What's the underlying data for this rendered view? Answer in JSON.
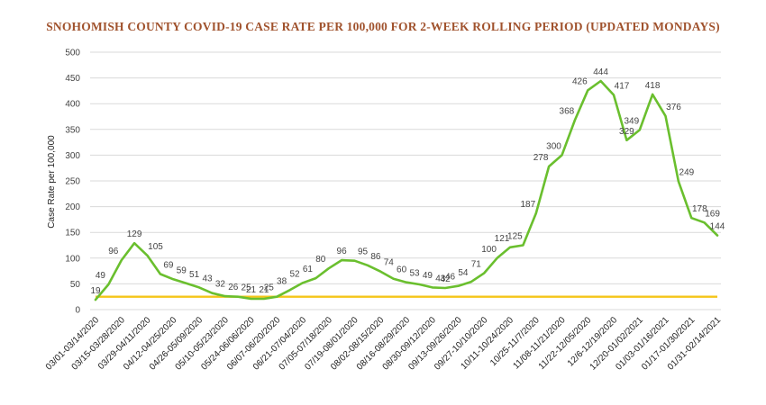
{
  "chart_data": {
    "type": "line",
    "title": "SNOHOMISH COUNTY COVID-19 CASE RATE PER 100,000 FOR 2-WEEK ROLLING PERIOD (UPDATED MONDAYS)",
    "xlabel": "",
    "ylabel": "Case Rate per 100,000",
    "ylim": [
      0,
      500
    ],
    "yticks": [
      0,
      50,
      100,
      150,
      200,
      250,
      300,
      350,
      400,
      450,
      500
    ],
    "grid": true,
    "x_tick_labels": [
      "03/01-03/14/2020",
      "03/15-03/28/2020",
      "03/29-04/11/2020",
      "04/12-04/25/2020",
      "04/26-05/09/2020",
      "05/10-05/23/2020",
      "05/24-06/06/2020",
      "06/07-06/20/2020",
      "06/21-07/04/2020",
      "07/05-07/18/2020",
      "07/19-08/01/2020",
      "08/02-08/15/2020",
      "08/16-08/29/2020",
      "08/30-09/12/2020",
      "09/13-09/26/2020",
      "09/27-10/10/2020",
      "10/11-10/24/2020",
      "10/25-11/7/2020",
      "11/08-11/21/2020",
      "11/22-12/05/2020",
      "12/6-12/19/2020",
      "12/20-01/02/2021",
      "01/03-01/16/2021",
      "01/17-01/30/2021",
      "01/31-02/14/2021"
    ],
    "series": [
      {
        "color": "#6abf2e",
        "values": [
          19,
          49,
          96,
          129,
          105,
          69,
          59,
          51,
          43,
          32,
          26,
          25,
          21,
          21,
          25,
          38,
          52,
          61,
          80,
          96,
          95,
          86,
          74,
          60,
          53,
          49,
          43,
          42,
          46,
          54,
          71,
          100,
          121,
          125,
          187,
          278,
          300,
          368,
          426,
          444,
          417,
          329,
          349,
          418,
          376,
          249,
          178,
          169,
          144
        ]
      }
    ],
    "reference_line": {
      "value": 25,
      "color": "#f5c518"
    }
  }
}
